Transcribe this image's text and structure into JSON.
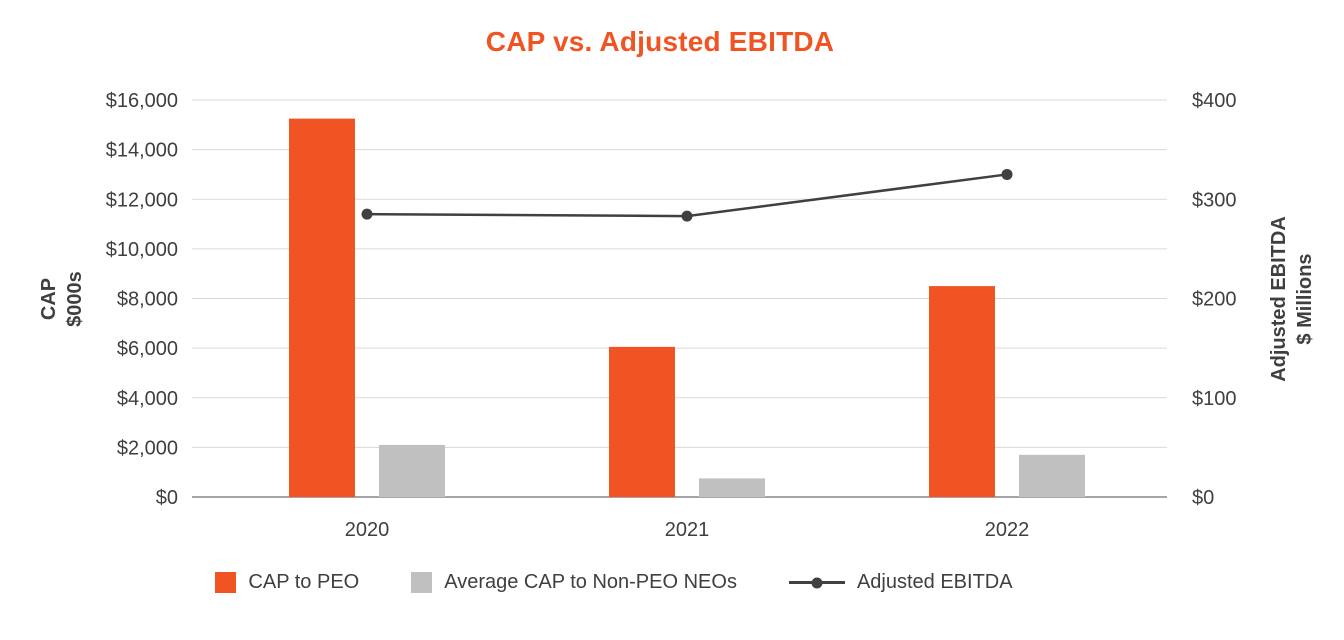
{
  "title": "CAP vs. Adjusted EBITDA",
  "colors": {
    "accent_orange": "#F05423",
    "bar_gray": "#C0C0C0",
    "line_dark": "#404040",
    "grid": "#D9D9D9",
    "axis_line": "#A6A6A6",
    "text": "#3F3F3F",
    "background": "#FFFFFF"
  },
  "chart_data": {
    "type": "combo-bar-line",
    "categories": [
      "2020",
      "2021",
      "2022"
    ],
    "series": [
      {
        "name": "CAP to PEO",
        "kind": "bar",
        "axis": "left",
        "color_key": "accent_orange",
        "values": [
          15250,
          6050,
          8500
        ]
      },
      {
        "name": "Average CAP to Non-PEO NEOs",
        "kind": "bar",
        "axis": "left",
        "color_key": "bar_gray",
        "values": [
          2100,
          750,
          1700
        ]
      },
      {
        "name": "Adjusted EBITDA",
        "kind": "line",
        "axis": "right",
        "color_key": "line_dark",
        "values": [
          285,
          283,
          325
        ]
      }
    ],
    "left_axis": {
      "title_line1": "CAP",
      "title_line2": "$000s",
      "min": 0,
      "max": 16000,
      "step": 2000,
      "ticks": [
        "$16,000",
        "$14,000",
        "$12,000",
        "$10,000",
        "$8,000",
        "$6,000",
        "$4,000",
        "$2,000",
        "$0"
      ]
    },
    "right_axis": {
      "title_line1": "Adjusted EBITDA",
      "title_line2": "$ Millions",
      "min": 0,
      "max": 400,
      "step": 100,
      "ticks": [
        "$400",
        "$300",
        "$200",
        "$100",
        "$0"
      ]
    },
    "grid": true,
    "legend_position": "bottom"
  }
}
